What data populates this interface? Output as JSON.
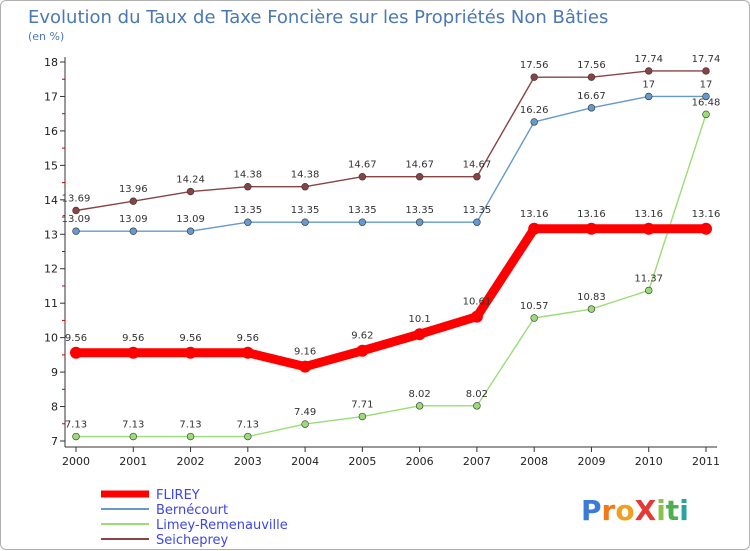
{
  "chart_data": {
    "type": "line",
    "title": "Evolution du Taux de Taxe Foncière sur les Propriétés Non Bâties",
    "subtitle": "(en %)",
    "xlabel": "",
    "ylabel": "",
    "categories": [
      "2000",
      "2001",
      "2002",
      "2003",
      "2004",
      "2005",
      "2006",
      "2007",
      "2008",
      "2009",
      "2010",
      "2011"
    ],
    "ylim": [
      7,
      18
    ],
    "yticks": [
      "7",
      "8",
      "9",
      "10",
      "11",
      "12",
      "13",
      "14",
      "15",
      "16",
      "17",
      "18"
    ],
    "grid": false,
    "legend_position": "bottom-left",
    "series": [
      {
        "name": "FLIREY",
        "color": "#ff0000",
        "values": [
          9.56,
          9.56,
          9.56,
          9.56,
          9.16,
          9.62,
          10.1,
          10.61,
          13.16,
          13.16,
          13.16,
          13.16
        ],
        "labels": [
          "9.56",
          "9.56",
          "9.56",
          "9.56",
          "9.16",
          "9.62",
          "10.1",
          "10.61",
          "13.16",
          "13.16",
          "13.16",
          "13.16"
        ]
      },
      {
        "name": "Bernécourt",
        "color": "#6699cc",
        "values": [
          13.09,
          13.09,
          13.09,
          13.35,
          13.35,
          13.35,
          13.35,
          13.35,
          16.26,
          16.67,
          17,
          17
        ],
        "labels": [
          "13.09",
          "13.09",
          "13.09",
          "13.35",
          "13.35",
          "13.35",
          "13.35",
          "13.35",
          "16.26",
          "16.67",
          "17",
          "17"
        ]
      },
      {
        "name": "Limey-Remenauville",
        "color": "#99dd77",
        "values": [
          7.13,
          7.13,
          7.13,
          7.13,
          7.49,
          7.71,
          8.02,
          8.02,
          10.57,
          10.83,
          11.37,
          16.48
        ],
        "labels": [
          "7.13",
          "7.13",
          "7.13",
          "7.13",
          "7.49",
          "7.71",
          "8.02",
          "8.02",
          "10.57",
          "10.83",
          "11.37",
          "16.48"
        ]
      },
      {
        "name": "Seicheprey",
        "color": "#884444",
        "values": [
          13.69,
          13.96,
          14.24,
          14.38,
          14.38,
          14.67,
          14.67,
          14.67,
          17.56,
          17.56,
          17.74,
          17.74
        ],
        "labels": [
          "13.69",
          "13.96",
          "14.24",
          "14.38",
          "14.38",
          "14.67",
          "14.67",
          "14.67",
          "17.56",
          "17.56",
          "17.74",
          "17.74"
        ]
      }
    ]
  },
  "brand": {
    "text": "ProXiti",
    "letters": [
      "P",
      "r",
      "o",
      "X",
      "i",
      "t",
      "i"
    ],
    "colors": [
      "#3a7bd5",
      "#f07a1a",
      "#f0a020",
      "#e53935",
      "#8bc34a",
      "#4caf50",
      "#26a69a"
    ]
  }
}
